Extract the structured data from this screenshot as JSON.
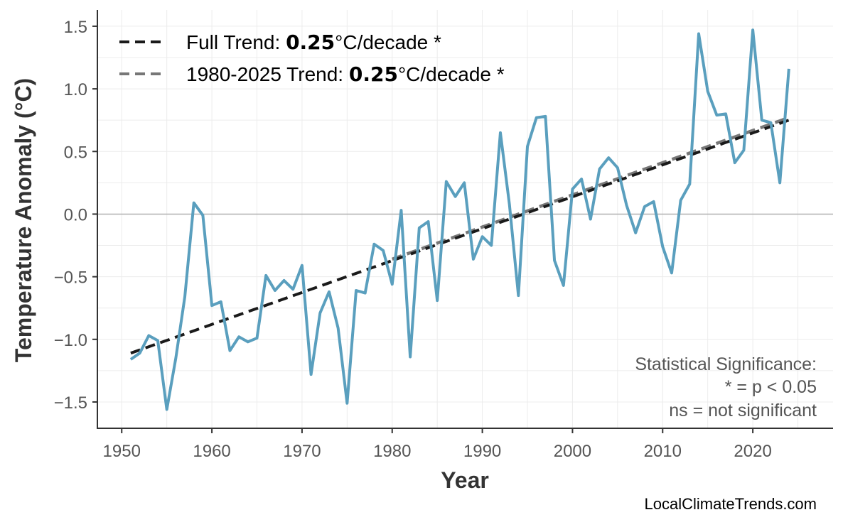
{
  "chart_data": {
    "type": "line",
    "title": "",
    "xlabel": "Year",
    "ylabel": "Temperature Anomaly (°C)",
    "xlim": [
      1947.3,
      2028.9
    ],
    "ylim": [
      -1.71,
      1.63
    ],
    "grid": true,
    "x_ticks": [
      1950,
      1960,
      1970,
      1980,
      1990,
      2000,
      2010,
      2020
    ],
    "y_ticks": [
      -1.5,
      -1.0,
      -0.5,
      0.0,
      0.5,
      1.0,
      1.5
    ],
    "y_tick_labels": [
      "−1.5",
      "−1.0",
      "−0.5",
      "0.0",
      "0.5",
      "1.0",
      "1.5"
    ],
    "colors": {
      "series": "#5a9fbe",
      "full_trend": "#1a1a1a",
      "recent_trend": "#777777",
      "zero_line": "#b0b0b0"
    },
    "series": [
      {
        "x": [
          1951,
          1952,
          1953,
          1954,
          1955,
          1956,
          1957,
          1958,
          1959,
          1960,
          1961,
          1962,
          1963,
          1964,
          1965,
          1966,
          1967,
          1968,
          1969,
          1970,
          1971,
          1972,
          1973,
          1974,
          1975,
          1976,
          1977,
          1978,
          1979,
          1980,
          1981,
          1982,
          1983,
          1984,
          1985,
          1986,
          1987,
          1988,
          1989,
          1990,
          1991,
          1992,
          1993,
          1994,
          1995,
          1996,
          1997,
          1998,
          1999,
          2000,
          2001,
          2002,
          2003,
          2004,
          2005,
          2006,
          2007,
          2008,
          2009,
          2010,
          2011,
          2012,
          2013,
          2014,
          2015,
          2016,
          2017,
          2018,
          2019,
          2020,
          2021,
          2022,
          2023,
          2024
        ],
        "values": [
          -1.16,
          -1.11,
          -0.97,
          -1.01,
          -1.56,
          -1.15,
          -0.66,
          0.09,
          -0.01,
          -0.73,
          -0.7,
          -1.09,
          -0.98,
          -1.02,
          -0.99,
          -0.49,
          -0.61,
          -0.53,
          -0.6,
          -0.41,
          -1.28,
          -0.79,
          -0.62,
          -0.91,
          -1.51,
          -0.61,
          -0.63,
          -0.24,
          -0.29,
          -0.56,
          0.03,
          -1.14,
          -0.11,
          -0.06,
          -0.69,
          0.26,
          0.14,
          0.25,
          -0.36,
          -0.18,
          -0.25,
          0.65,
          0.08,
          -0.65,
          0.54,
          0.77,
          0.78,
          -0.37,
          -0.57,
          0.2,
          0.28,
          -0.04,
          0.36,
          0.45,
          0.37,
          0.07,
          -0.15,
          0.06,
          0.1,
          -0.26,
          -0.47,
          0.11,
          0.24,
          1.44,
          0.98,
          0.79,
          0.8,
          0.41,
          0.51,
          1.47,
          0.75,
          0.73,
          0.25,
          1.16
        ]
      }
    ],
    "trends": [
      {
        "name_prefix": "Full Trend: ",
        "rate": "0.25",
        "name_suffix": "°C/decade *",
        "x": [
          1951,
          2024
        ],
        "values": [
          -1.11,
          0.75
        ],
        "style": "dashed"
      },
      {
        "name_prefix": "1980-2025 Trend: ",
        "rate": "0.25",
        "name_suffix": "°C/decade *",
        "x": [
          1980,
          2024
        ],
        "values": [
          -0.36,
          0.77
        ],
        "style": "dashed"
      }
    ],
    "legend_position": "top-left",
    "annotation": [
      "Statistical Significance:",
      "* = p < 0.05",
      "ns = not significant"
    ],
    "source": "LocalClimateTrends.com"
  }
}
